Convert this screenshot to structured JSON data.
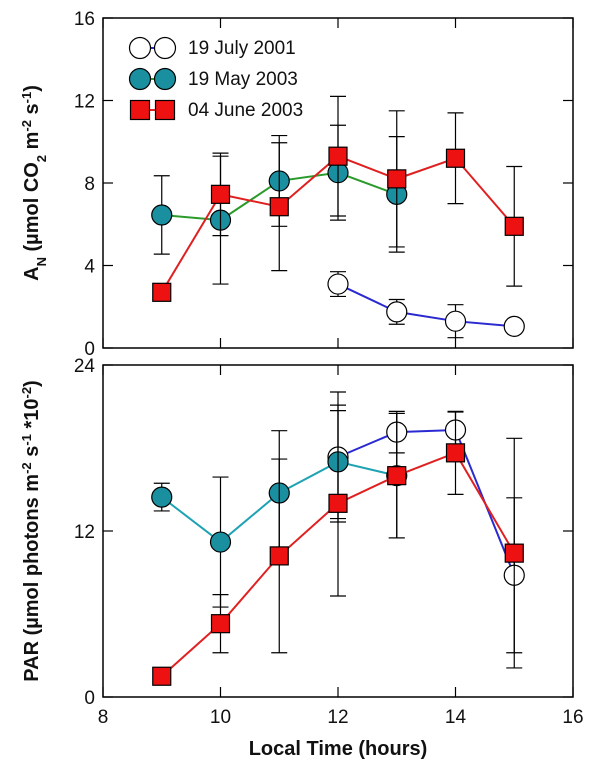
{
  "chart_data": [
    {
      "type": "line",
      "ylabel": [
        "A",
        "N",
        " (µmol CO",
        "2",
        " m",
        "-2",
        " s",
        "-1",
        ")"
      ],
      "xlim": [
        8,
        16
      ],
      "ylim": [
        0,
        16
      ],
      "yticks": [
        0,
        4,
        8,
        12,
        16
      ],
      "legend": "upper left",
      "series": [
        {
          "name": "19 July 2001",
          "color": "#2a2ad0",
          "marker": "circle",
          "marker_color": "#ffffff",
          "x": [
            12,
            13,
            14,
            15
          ],
          "values": [
            3.1,
            1.75,
            1.3,
            1.05
          ],
          "errors": [
            0.6,
            0.6,
            0.8,
            0.1
          ]
        },
        {
          "name": "19 May 2003",
          "color": "#2a9a2a",
          "marker": "circle",
          "marker_color": "#1a8f9f",
          "x": [
            9,
            10,
            11,
            12,
            13
          ],
          "values": [
            6.45,
            6.2,
            8.1,
            8.5,
            7.45
          ],
          "errors": [
            1.9,
            3.1,
            2.2,
            2.3,
            2.8
          ]
        },
        {
          "name": "04 June 2003",
          "color": "#e02020",
          "marker": "square",
          "marker_color": "#ee1111",
          "x": [
            9,
            10,
            11,
            12,
            13,
            14,
            15
          ],
          "values": [
            2.7,
            7.45,
            6.85,
            9.3,
            8.2,
            9.2,
            5.9
          ],
          "errors": [
            0.2,
            2.0,
            3.1,
            2.9,
            3.3,
            2.2,
            2.9
          ]
        }
      ]
    },
    {
      "type": "line",
      "ylabel": [
        "PAR (µmol photons m",
        "-2",
        " s",
        "-1",
        " *10",
        "-2",
        ")"
      ],
      "xlabel": "Local Time (hours)",
      "xlim": [
        8,
        16
      ],
      "xticks": [
        8,
        10,
        12,
        14,
        16
      ],
      "ylim": [
        0,
        24
      ],
      "yticks": [
        0,
        12,
        24
      ],
      "series": [
        {
          "color": "#2a2ad0",
          "marker": "circle",
          "marker_color": "#ffffff",
          "x": [
            12,
            13,
            14,
            15
          ],
          "values": [
            17.35,
            19.15,
            19.3,
            8.8
          ],
          "errors": [
            4.7,
            1.5,
            1.3,
            5.6
          ]
        },
        {
          "color": "#1fa3b3",
          "marker": "circle",
          "marker_color": "#1a8f9f",
          "x": [
            9,
            10,
            11,
            12,
            13
          ],
          "values": [
            14.45,
            11.2,
            14.75,
            17.0,
            16.0
          ],
          "errors": [
            1.0,
            4.7,
            4.5,
            4.1,
            4.5
          ]
        },
        {
          "color": "#e02020",
          "marker": "square",
          "marker_color": "#ee1111",
          "x": [
            9,
            10,
            11,
            12,
            13,
            14,
            15
          ],
          "values": [
            1.5,
            5.3,
            10.2,
            14.0,
            16.0,
            17.65,
            10.4
          ],
          "errors": [
            0.3,
            2.1,
            7.0,
            6.7,
            4.5,
            3.0,
            8.3
          ]
        }
      ]
    }
  ]
}
